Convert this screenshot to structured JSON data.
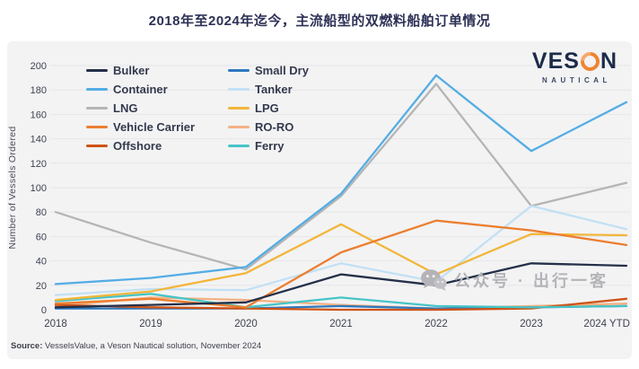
{
  "title": "2018年至2024年迄今，主流船型的双燃料船舶订单情况",
  "logo": {
    "line1_pre": "VES",
    "line1_post": "N",
    "line2": "NAUTICAL"
  },
  "source": {
    "label": "Source:",
    "text": " VesselsValue, a Veson Nautical solution, November 2024"
  },
  "watermark": {
    "icon": "wechat-icon",
    "text": "公众号 · 出行一客"
  },
  "colors": {
    "title": "#2d3156",
    "panel_bg": "#f3f3f4",
    "gridline": "#e6e6e9",
    "tick_text": "#3f4250",
    "axis_label": "#4a4c58",
    "watermark": "#b4b4b8",
    "logo_navy": "#1c2b4a",
    "logo_orange": "#ef8432"
  },
  "chart_data": {
    "type": "line",
    "title": "2018年至2024年迄今，主流船型的双燃料船舶订单情况",
    "xlabel": "",
    "ylabel": "Number of Vessels Ordered",
    "ylim": [
      0,
      200
    ],
    "ytick_step": 20,
    "grid": true,
    "legend_position": "top-left, two columns",
    "categories": [
      "2018",
      "2019",
      "2020",
      "2021",
      "2022",
      "2023",
      "2024 YTD"
    ],
    "series": [
      {
        "name": "Bulker",
        "color": "#243049",
        "values": [
          2,
          4,
          6,
          29,
          20,
          38,
          36
        ]
      },
      {
        "name": "Small Dry",
        "color": "#2e78bf",
        "values": [
          1,
          1,
          1,
          3,
          1,
          2,
          3
        ]
      },
      {
        "name": "Container",
        "color": "#54ade4",
        "values": [
          21,
          26,
          35,
          95,
          192,
          130,
          170
        ]
      },
      {
        "name": "Tanker",
        "color": "#c2e0f4",
        "values": [
          12,
          17,
          16,
          38,
          23,
          85,
          66
        ]
      },
      {
        "name": "LNG",
        "color": "#b5b5b5",
        "values": [
          80,
          55,
          33,
          93,
          185,
          85,
          104
        ]
      },
      {
        "name": "LPG",
        "color": "#f2b63a",
        "values": [
          8,
          15,
          30,
          70,
          29,
          62,
          61
        ]
      },
      {
        "name": "Vehicle Carrier",
        "color": "#ec7e2f",
        "values": [
          5,
          9,
          2,
          47,
          73,
          65,
          53
        ]
      },
      {
        "name": "RO-RO",
        "color": "#f3b183",
        "values": [
          3,
          10,
          8,
          4,
          1,
          3,
          5
        ]
      },
      {
        "name": "Offshore",
        "color": "#cf5315",
        "values": [
          4,
          2,
          1,
          0,
          0,
          1,
          9
        ]
      },
      {
        "name": "Ferry",
        "color": "#47c4c6",
        "values": [
          7,
          13,
          2,
          10,
          3,
          2,
          3
        ]
      }
    ]
  }
}
